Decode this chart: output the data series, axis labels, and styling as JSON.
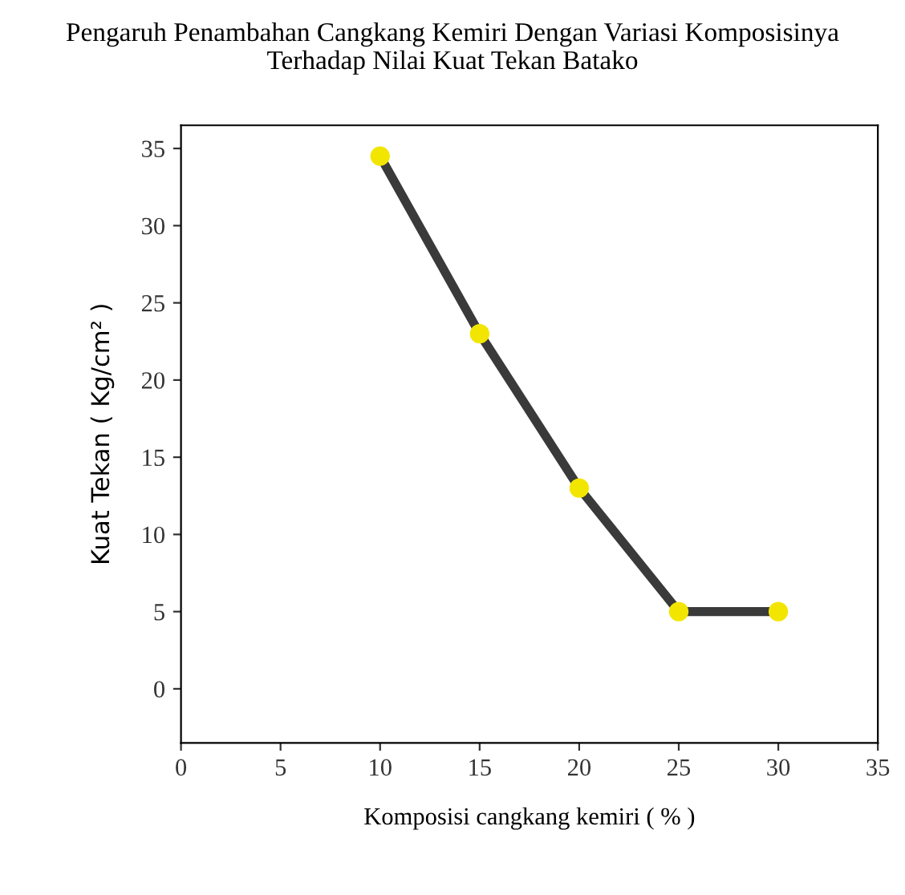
{
  "chart_data": {
    "type": "line",
    "title": "Pengaruh Penambahan Cangkang Kemiri Dengan Variasi Komposisinya\nTerhadap Nilai Kuat Tekan Batako",
    "xlabel": "Komposisi cangkang kemiri ( % )",
    "ylabel": "Kuat Tekan ( Kg/cm² )",
    "x": [
      10,
      15,
      20,
      25,
      30
    ],
    "series": [
      {
        "color": "#3a3a3a",
        "colors": [
          "#f2e600",
          "#f2e600",
          "#f2e600",
          "#f2e600",
          "#f2e600"
        ],
        "values": [
          34.5,
          23,
          13,
          5,
          5
        ]
      }
    ],
    "xlim": [
      0,
      35
    ],
    "xticks": [
      0,
      5,
      10,
      15,
      20,
      25,
      30,
      35
    ],
    "ylim": [
      -3.5,
      36.5
    ],
    "yticks": [
      0,
      5,
      10,
      15,
      20,
      25,
      30,
      35
    ],
    "marker": "circle",
    "line_style": "solid",
    "grid": false,
    "legend": false
  }
}
